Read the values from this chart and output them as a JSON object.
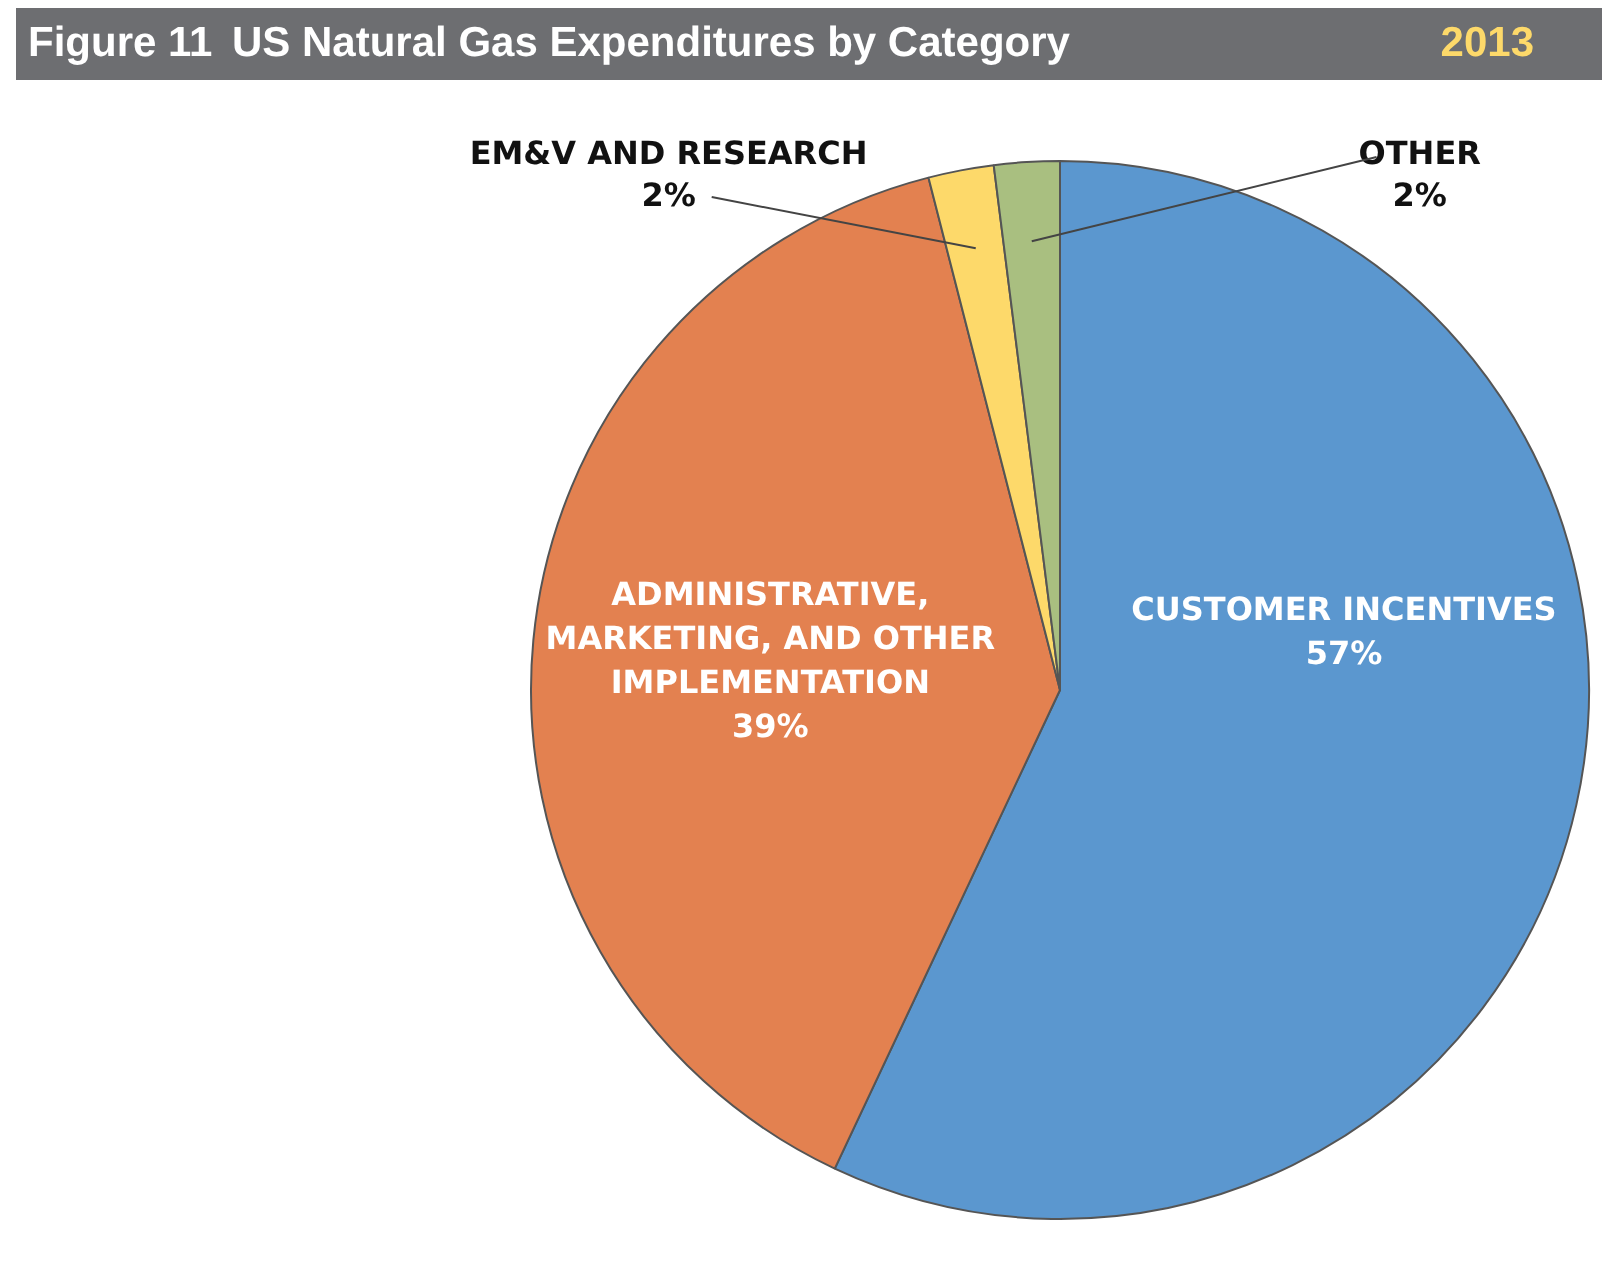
{
  "chart_data": {
    "type": "pie",
    "title": "US Natural Gas Expenditures by Category",
    "subtitle": "2013",
    "annotations": [
      "Figure 11"
    ],
    "categories": [
      "CUSTOMER INCENTIVES",
      "ADMINISTRATIVE, MARKETING, AND OTHER IMPLEMENTATION",
      "EM&V AND RESEARCH",
      "OTHER"
    ],
    "values": [
      57,
      39,
      2,
      2
    ],
    "value_labels": [
      "57%",
      "39%",
      "2%",
      "2%"
    ],
    "colors": [
      "#5b97cf",
      "#e38150",
      "#fdd96a",
      "#a9bf80"
    ],
    "legend": false
  }
}
